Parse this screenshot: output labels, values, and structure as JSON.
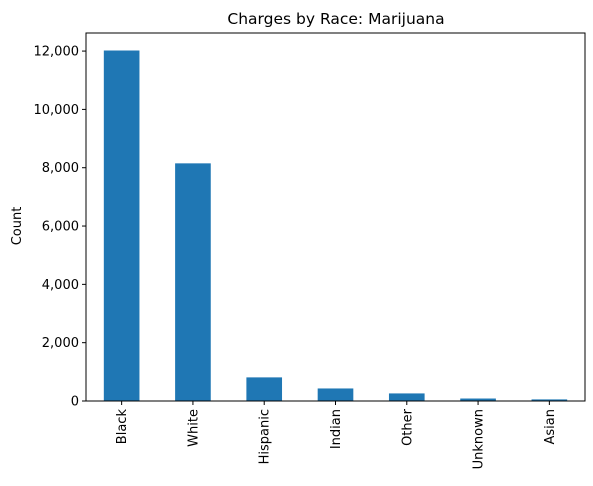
{
  "chart_data": {
    "type": "bar",
    "title": "Charges by Race: Marijuana",
    "xlabel": "",
    "ylabel": "Count",
    "categories": [
      "Black",
      "White",
      "Hispanic",
      "Indian",
      "Other",
      "Unknown",
      "Asian"
    ],
    "values": [
      12020,
      8150,
      810,
      430,
      260,
      85,
      55
    ],
    "ylim": [
      0,
      12620
    ],
    "yticks": [
      0,
      2000,
      4000,
      6000,
      8000,
      10000,
      12000
    ],
    "ytick_labels": [
      "0",
      "2,000",
      "4,000",
      "6,000",
      "8,000",
      "10,000",
      "12,000"
    ],
    "bar_color": "#1f77b4",
    "grid": false,
    "legend": "none"
  }
}
